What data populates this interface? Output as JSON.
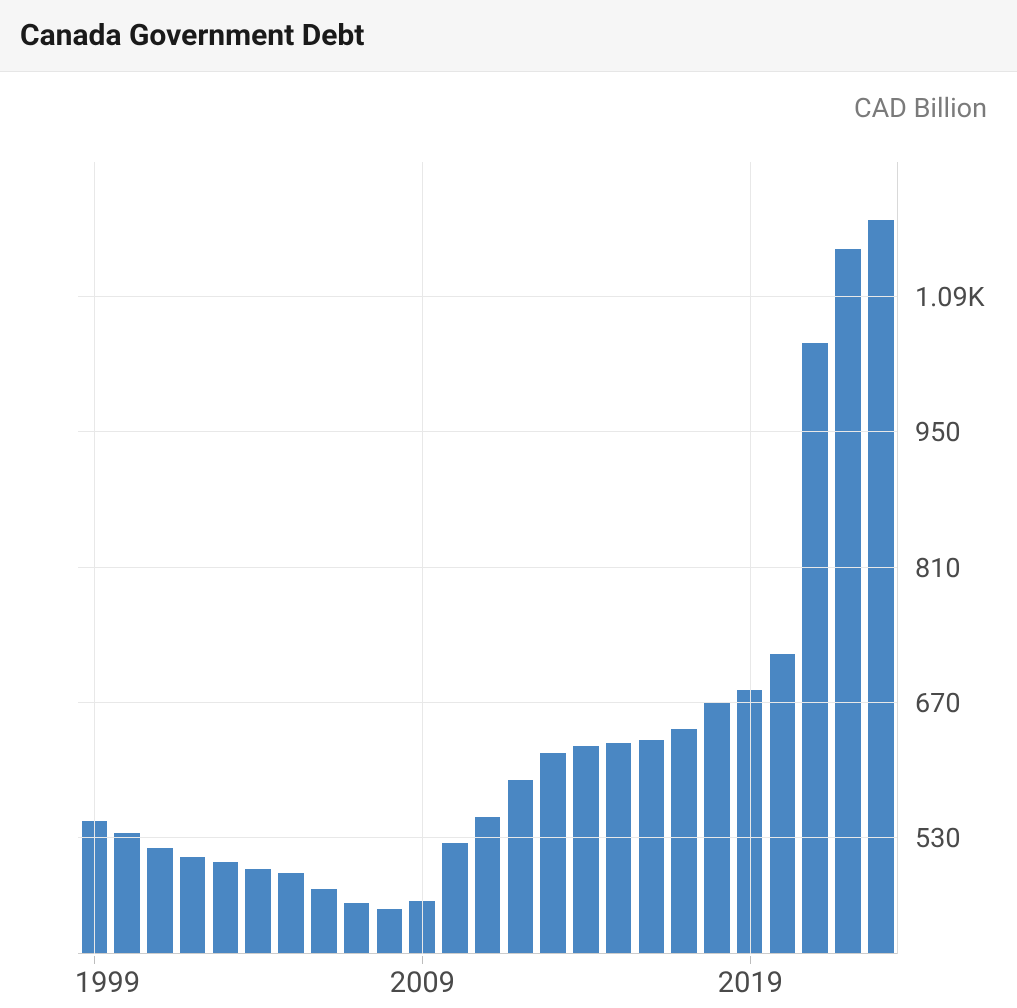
{
  "header": {
    "title": "Canada Government Debt"
  },
  "chart": {
    "type": "bar",
    "unit_label": "CAD Billion",
    "bar_color": "#4a87c3",
    "background_color": "#ffffff",
    "grid_color": "#e8e8e8",
    "axis_line_color": "#d9d9d9",
    "baseline_color": "#cccccc",
    "bar_width_ratio": 0.78,
    "y_axis": {
      "min": 410,
      "max": 1230,
      "ticks": [
        530,
        670,
        810,
        950,
        1090
      ],
      "tick_labels": [
        "530",
        "670",
        "810",
        "950",
        "1.09K"
      ],
      "label_fontsize": 27,
      "label_color": "#4a4a4a",
      "side": "right"
    },
    "x_axis": {
      "tick_years": [
        1999,
        2009,
        2019
      ],
      "label_fontsize": 29,
      "label_color": "#4a4a4a"
    },
    "years": [
      1999,
      2000,
      2001,
      2002,
      2003,
      2004,
      2005,
      2006,
      2007,
      2008,
      2009,
      2010,
      2011,
      2012,
      2013,
      2014,
      2015,
      2016,
      2017,
      2018,
      2019,
      2020,
      2021,
      2022,
      2023
    ],
    "values": [
      548,
      535,
      520,
      510,
      505,
      498,
      494,
      477,
      463,
      457,
      465,
      525,
      552,
      590,
      618,
      625,
      628,
      632,
      643,
      670,
      683,
      721,
      1043,
      1140,
      1170
    ]
  }
}
